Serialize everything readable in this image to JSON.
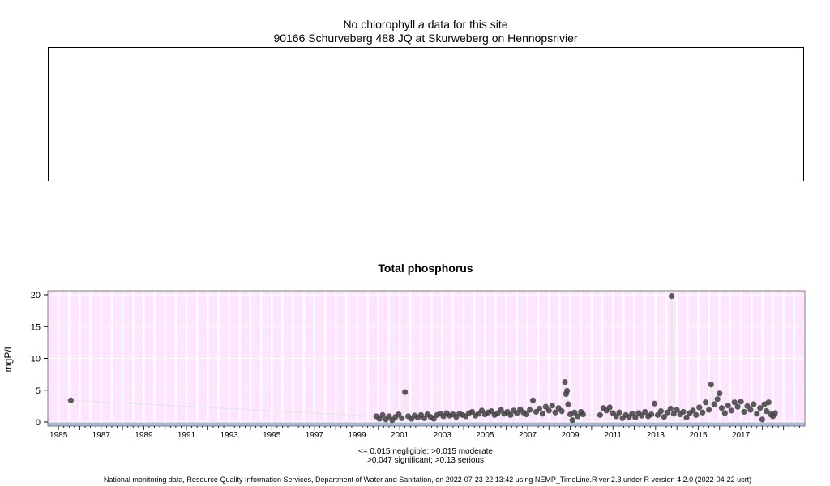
{
  "header": {
    "line1_prefix": "No chlorophyll",
    "line1_italic": "a",
    "line1_suffix": "data for this site",
    "line2": "90166 Schurveberg 488 JQ at Skurweberg on Hennopsrivier"
  },
  "legend": {
    "line1": "<= 0.015 negligible; >0.015 moderate",
    "line2": ">0.047 significant; >0.13 serious"
  },
  "footer": "National monitoring data, Resource Quality Information Services, Department of Water and Sanitation, on 2022-07-23 22:13:42 using NEMP_TimeLine.R ver 2.3 under R version 4.2.0 (2022-04-22 ucrt)",
  "chart_data": {
    "type": "scatter",
    "title": "Total phosphorus",
    "ylabel": "mgP/L",
    "xlabel": "",
    "ylim": [
      0,
      20
    ],
    "xlim": [
      1984.5,
      2020.0
    ],
    "yticks": [
      0,
      5,
      10,
      15,
      20
    ],
    "xticks": [
      1985,
      1987,
      1989,
      1991,
      1993,
      1995,
      1997,
      1999,
      2001,
      2003,
      2005,
      2007,
      2009,
      2011,
      2013,
      2015,
      2017
    ],
    "colors": {
      "background": "#ffe4ff",
      "gridline": "#ffffff",
      "baseline_band": "#a9b9d3",
      "points": "#404040",
      "connector": "#e8e8e8",
      "panel_border": "#7f7f7f"
    },
    "points": [
      {
        "x": 1985.58,
        "y": 3.4
      },
      {
        "x": 1999.9,
        "y": 0.9
      },
      {
        "x": 2000.05,
        "y": 0.5
      },
      {
        "x": 2000.2,
        "y": 1.1
      },
      {
        "x": 2000.35,
        "y": 0.4
      },
      {
        "x": 2000.5,
        "y": 0.9
      },
      {
        "x": 2000.65,
        "y": 0.3
      },
      {
        "x": 2000.8,
        "y": 0.8
      },
      {
        "x": 2000.95,
        "y": 1.2
      },
      {
        "x": 2001.1,
        "y": 0.6
      },
      {
        "x": 2001.25,
        "y": 4.7
      },
      {
        "x": 2001.4,
        "y": 0.9
      },
      {
        "x": 2001.55,
        "y": 0.5
      },
      {
        "x": 2001.7,
        "y": 1.0
      },
      {
        "x": 2001.85,
        "y": 0.7
      },
      {
        "x": 2002.0,
        "y": 1.1
      },
      {
        "x": 2002.15,
        "y": 0.6
      },
      {
        "x": 2002.3,
        "y": 1.2
      },
      {
        "x": 2002.45,
        "y": 0.8
      },
      {
        "x": 2002.6,
        "y": 0.5
      },
      {
        "x": 2002.75,
        "y": 1.1
      },
      {
        "x": 2002.9,
        "y": 1.3
      },
      {
        "x": 2003.05,
        "y": 0.9
      },
      {
        "x": 2003.2,
        "y": 1.4
      },
      {
        "x": 2003.35,
        "y": 1.0
      },
      {
        "x": 2003.5,
        "y": 1.2
      },
      {
        "x": 2003.65,
        "y": 0.8
      },
      {
        "x": 2003.8,
        "y": 1.3
      },
      {
        "x": 2003.95,
        "y": 1.1
      },
      {
        "x": 2004.1,
        "y": 0.9
      },
      {
        "x": 2004.25,
        "y": 1.4
      },
      {
        "x": 2004.4,
        "y": 1.6
      },
      {
        "x": 2004.55,
        "y": 1.0
      },
      {
        "x": 2004.7,
        "y": 1.3
      },
      {
        "x": 2004.85,
        "y": 1.8
      },
      {
        "x": 2005.0,
        "y": 1.2
      },
      {
        "x": 2005.15,
        "y": 1.5
      },
      {
        "x": 2005.3,
        "y": 1.7
      },
      {
        "x": 2005.45,
        "y": 1.1
      },
      {
        "x": 2005.6,
        "y": 1.4
      },
      {
        "x": 2005.75,
        "y": 1.9
      },
      {
        "x": 2005.9,
        "y": 1.3
      },
      {
        "x": 2006.05,
        "y": 1.6
      },
      {
        "x": 2006.2,
        "y": 1.1
      },
      {
        "x": 2006.35,
        "y": 1.8
      },
      {
        "x": 2006.5,
        "y": 1.4
      },
      {
        "x": 2006.65,
        "y": 2.0
      },
      {
        "x": 2006.8,
        "y": 1.5
      },
      {
        "x": 2006.95,
        "y": 1.2
      },
      {
        "x": 2007.1,
        "y": 1.9
      },
      {
        "x": 2007.25,
        "y": 3.4
      },
      {
        "x": 2007.4,
        "y": 1.6
      },
      {
        "x": 2007.55,
        "y": 2.1
      },
      {
        "x": 2007.7,
        "y": 1.3
      },
      {
        "x": 2007.85,
        "y": 2.4
      },
      {
        "x": 2008.0,
        "y": 1.8
      },
      {
        "x": 2008.15,
        "y": 2.6
      },
      {
        "x": 2008.3,
        "y": 1.5
      },
      {
        "x": 2008.45,
        "y": 2.2
      },
      {
        "x": 2008.6,
        "y": 1.7
      },
      {
        "x": 2008.75,
        "y": 6.3
      },
      {
        "x": 2008.8,
        "y": 4.4
      },
      {
        "x": 2008.85,
        "y": 4.9
      },
      {
        "x": 2008.9,
        "y": 2.8
      },
      {
        "x": 2009.0,
        "y": 1.2
      },
      {
        "x": 2009.1,
        "y": 0.3
      },
      {
        "x": 2009.2,
        "y": 1.5
      },
      {
        "x": 2009.35,
        "y": 0.9
      },
      {
        "x": 2009.5,
        "y": 1.6
      },
      {
        "x": 2009.6,
        "y": 1.2
      },
      {
        "x": 2010.4,
        "y": 1.1
      },
      {
        "x": 2010.55,
        "y": 2.2
      },
      {
        "x": 2010.7,
        "y": 1.8
      },
      {
        "x": 2010.85,
        "y": 2.3
      },
      {
        "x": 2011.0,
        "y": 1.4
      },
      {
        "x": 2011.15,
        "y": 0.9
      },
      {
        "x": 2011.3,
        "y": 1.5
      },
      {
        "x": 2011.45,
        "y": 0.6
      },
      {
        "x": 2011.6,
        "y": 1.1
      },
      {
        "x": 2011.75,
        "y": 0.8
      },
      {
        "x": 2011.9,
        "y": 1.3
      },
      {
        "x": 2012.05,
        "y": 0.7
      },
      {
        "x": 2012.2,
        "y": 1.4
      },
      {
        "x": 2012.35,
        "y": 1.0
      },
      {
        "x": 2012.5,
        "y": 1.6
      },
      {
        "x": 2012.65,
        "y": 0.9
      },
      {
        "x": 2012.8,
        "y": 1.2
      },
      {
        "x": 2012.95,
        "y": 2.9
      },
      {
        "x": 2013.1,
        "y": 1.1
      },
      {
        "x": 2013.25,
        "y": 1.7
      },
      {
        "x": 2013.4,
        "y": 0.8
      },
      {
        "x": 2013.55,
        "y": 1.5
      },
      {
        "x": 2013.7,
        "y": 2.1
      },
      {
        "x": 2013.75,
        "y": 19.8
      },
      {
        "x": 2013.85,
        "y": 1.3
      },
      {
        "x": 2014.0,
        "y": 1.9
      },
      {
        "x": 2014.15,
        "y": 1.2
      },
      {
        "x": 2014.3,
        "y": 1.6
      },
      {
        "x": 2014.45,
        "y": 0.7
      },
      {
        "x": 2014.6,
        "y": 1.4
      },
      {
        "x": 2014.75,
        "y": 1.8
      },
      {
        "x": 2014.9,
        "y": 1.1
      },
      {
        "x": 2015.05,
        "y": 2.3
      },
      {
        "x": 2015.2,
        "y": 1.5
      },
      {
        "x": 2015.35,
        "y": 3.1
      },
      {
        "x": 2015.5,
        "y": 1.9
      },
      {
        "x": 2015.6,
        "y": 5.9
      },
      {
        "x": 2015.75,
        "y": 2.8
      },
      {
        "x": 2015.9,
        "y": 3.6
      },
      {
        "x": 2016.0,
        "y": 4.5
      },
      {
        "x": 2016.1,
        "y": 2.2
      },
      {
        "x": 2016.25,
        "y": 1.4
      },
      {
        "x": 2016.4,
        "y": 2.6
      },
      {
        "x": 2016.55,
        "y": 1.8
      },
      {
        "x": 2016.7,
        "y": 3.1
      },
      {
        "x": 2016.85,
        "y": 2.4
      },
      {
        "x": 2017.0,
        "y": 3.2
      },
      {
        "x": 2017.15,
        "y": 1.6
      },
      {
        "x": 2017.3,
        "y": 2.5
      },
      {
        "x": 2017.45,
        "y": 1.9
      },
      {
        "x": 2017.6,
        "y": 2.8
      },
      {
        "x": 2017.75,
        "y": 1.3
      },
      {
        "x": 2017.9,
        "y": 2.2
      },
      {
        "x": 2018.0,
        "y": 0.4
      },
      {
        "x": 2018.1,
        "y": 2.8
      },
      {
        "x": 2018.2,
        "y": 1.7
      },
      {
        "x": 2018.3,
        "y": 3.1
      },
      {
        "x": 2018.4,
        "y": 1.2
      },
      {
        "x": 2018.5,
        "y": 0.9
      },
      {
        "x": 2018.6,
        "y": 1.4
      }
    ]
  }
}
